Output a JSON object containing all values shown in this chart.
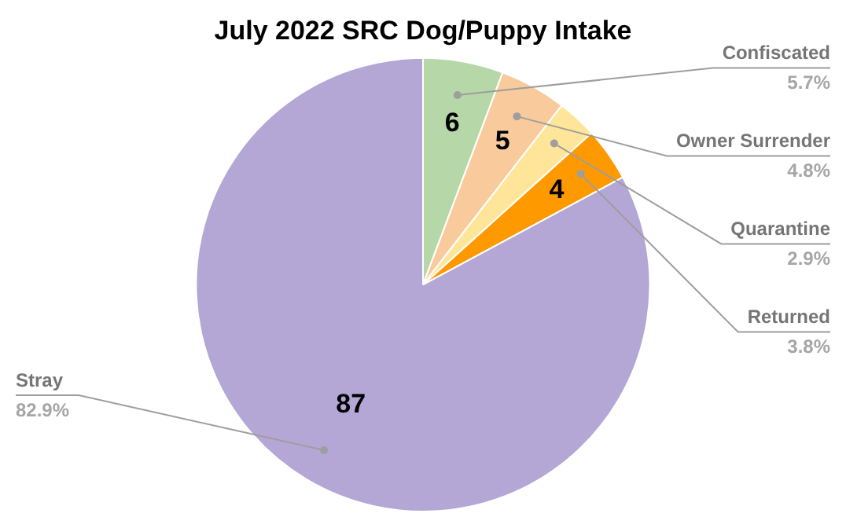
{
  "chart_data": {
    "type": "pie",
    "title": "July 2022 SRC Dog/Puppy Intake",
    "categories": [
      "Confiscated",
      "Owner Surrender",
      "Quarantine",
      "Returned",
      "Stray"
    ],
    "values": [
      6,
      5,
      3,
      4,
      87
    ],
    "value_labels": [
      "6",
      "5",
      null,
      "4",
      "87"
    ],
    "colors": [
      "#b6d7a8",
      "#f9cb9c",
      "#ffe599",
      "#ff9900",
      "#b4a7d6"
    ],
    "annotations": [
      {
        "text": "5.7%",
        "x": "Confiscated"
      },
      {
        "text": "4.8%",
        "x": "Owner Surrender"
      },
      {
        "text": "2.9%",
        "x": "Quarantine"
      },
      {
        "text": "3.8%",
        "x": "Returned"
      },
      {
        "text": "82.9%",
        "x": "Stray"
      }
    ],
    "legend": false
  }
}
